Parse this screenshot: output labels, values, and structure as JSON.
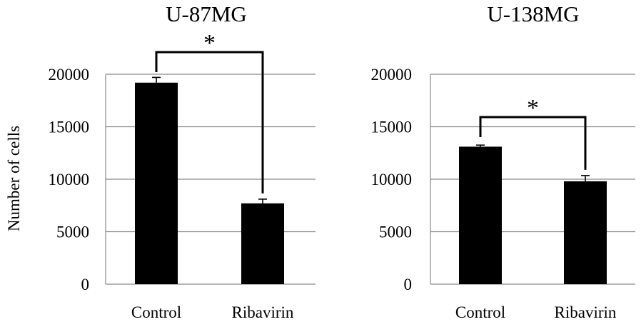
{
  "chart_data": [
    {
      "type": "bar",
      "title": "U-87MG",
      "ylabel": "Number of cells",
      "xlabel": "",
      "categories": [
        "Control",
        "Ribavirin"
      ],
      "values": [
        19200,
        7700
      ],
      "errors": [
        500,
        400
      ],
      "ylim": [
        0,
        20000
      ],
      "yticks": [
        0,
        5000,
        10000,
        15000,
        20000
      ],
      "grid": true,
      "significance": {
        "between": [
          0,
          1
        ],
        "label": "*"
      }
    },
    {
      "type": "bar",
      "title": "U-138MG",
      "ylabel": "",
      "xlabel": "",
      "categories": [
        "Control",
        "Ribavirin"
      ],
      "values": [
        13100,
        9800
      ],
      "errors": [
        150,
        550
      ],
      "ylim": [
        0,
        20000
      ],
      "yticks": [
        0,
        5000,
        10000,
        15000,
        20000
      ],
      "grid": true,
      "significance": {
        "between": [
          0,
          1
        ],
        "label": "*"
      }
    }
  ],
  "colors": {
    "bar": "#000000",
    "grid": "#8a8a8a"
  }
}
